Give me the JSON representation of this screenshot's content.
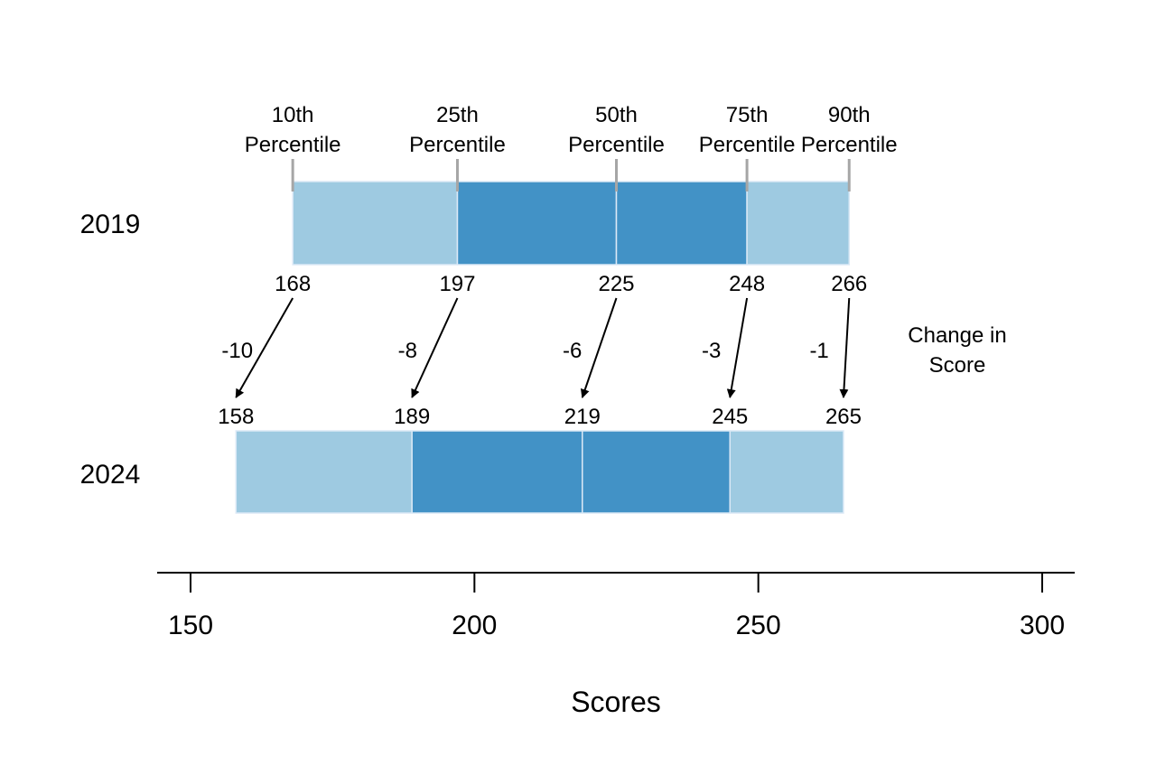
{
  "chart_data": {
    "type": "bar",
    "subtype": "stacked-percentile-range",
    "xlabel": "Scores",
    "xlim": [
      145,
      305
    ],
    "xticks": [
      150,
      200,
      250,
      300
    ],
    "grid": false,
    "percentile_labels": [
      {
        "line1": "10th",
        "line2": "Percentile"
      },
      {
        "line1": "25th",
        "line2": "Percentile"
      },
      {
        "line1": "50th",
        "line2": "Percentile"
      },
      {
        "line1": "75th",
        "line2": "Percentile"
      },
      {
        "line1": "90th",
        "line2": "Percentile"
      }
    ],
    "series": [
      {
        "name": "2019",
        "values": [
          168,
          197,
          225,
          248,
          266
        ]
      },
      {
        "name": "2024",
        "values": [
          158,
          189,
          219,
          245,
          265
        ]
      }
    ],
    "changes": [
      "-10",
      "-8",
      "-6",
      "-3",
      "-1"
    ],
    "change_title": {
      "line1": "Change in",
      "line2": "Score"
    },
    "colors": {
      "outer": "#9ecae1",
      "inner": "#4292c6",
      "tick_marks": "#a6a6a6",
      "arrows": "#000000"
    }
  }
}
